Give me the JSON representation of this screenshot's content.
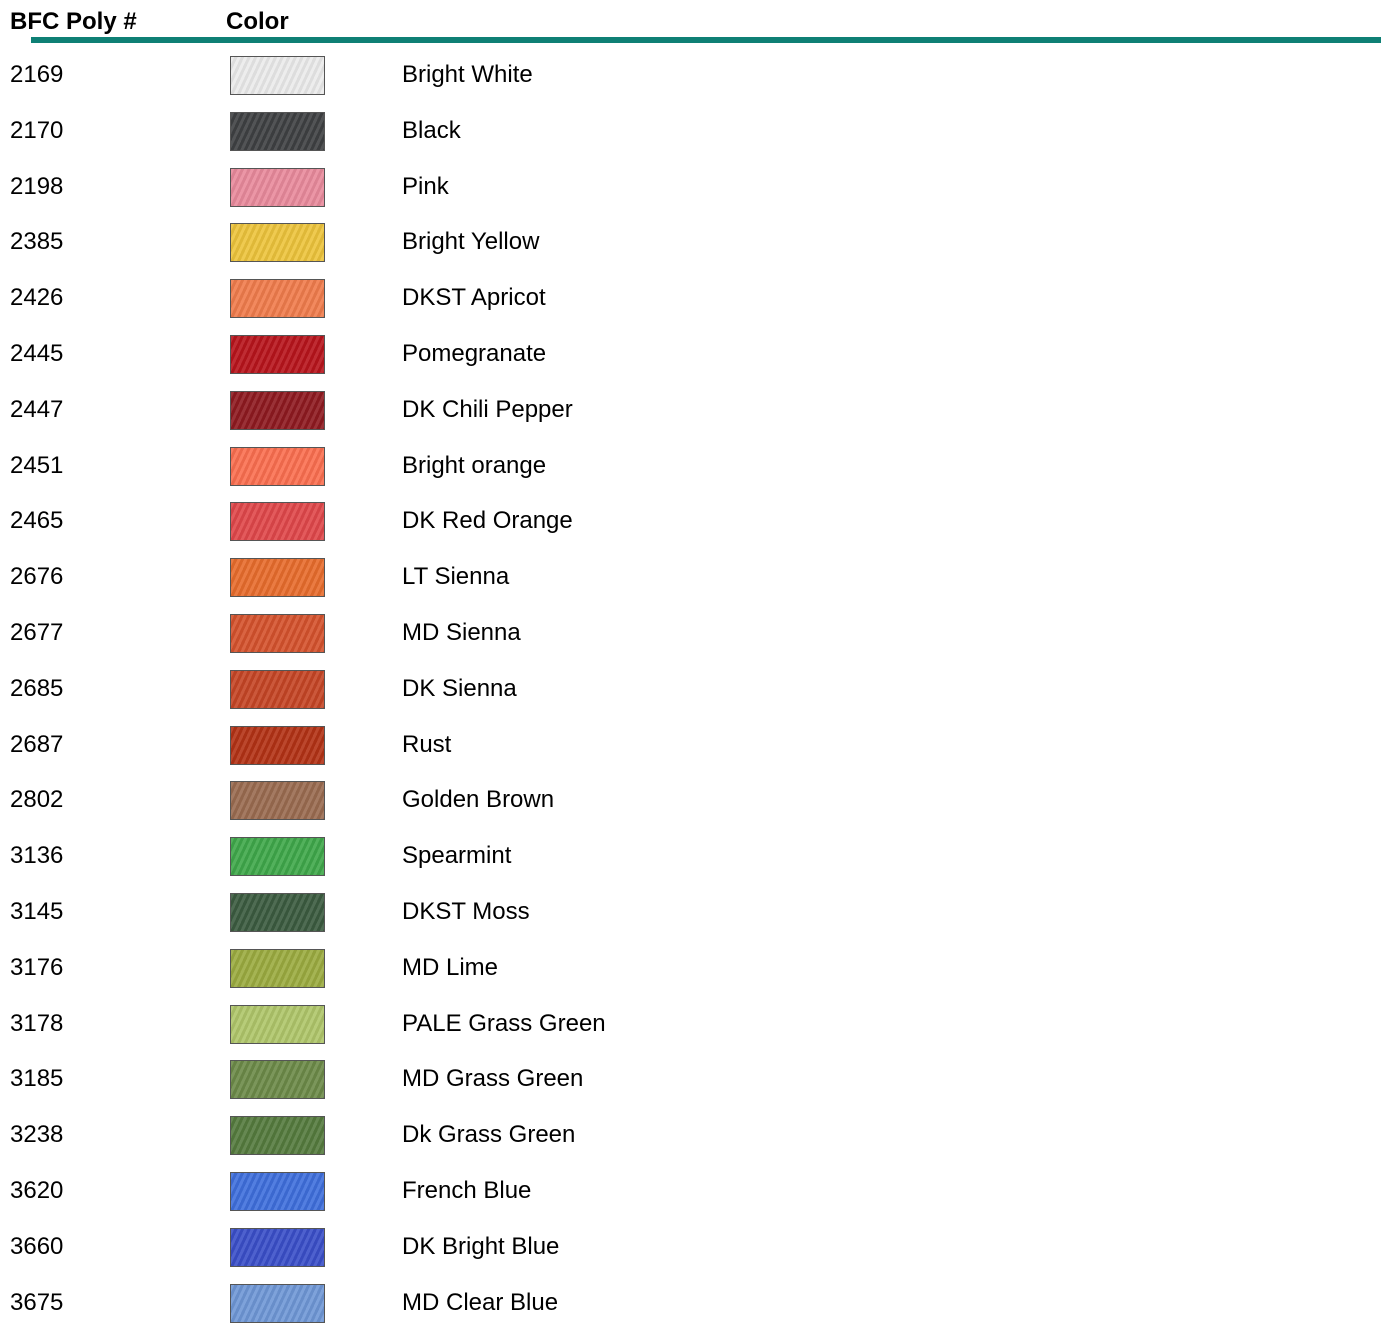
{
  "header": {
    "code_label": "BFC Poly #",
    "color_label": "Color"
  },
  "rows": [
    {
      "code": "2169",
      "name": "Bright White",
      "swatch": "#ebebeb"
    },
    {
      "code": "2170",
      "name": "Black",
      "swatch": "#3f4143"
    },
    {
      "code": "2198",
      "name": "Pink",
      "swatch": "#e98a9c"
    },
    {
      "code": "2385",
      "name": "Bright Yellow",
      "swatch": "#edc43c"
    },
    {
      "code": "2426",
      "name": "DKST Apricot",
      "swatch": "#f07c4c"
    },
    {
      "code": "2445",
      "name": "Pomegranate",
      "swatch": "#b8141c"
    },
    {
      "code": "2447",
      "name": "DK Chili Pepper",
      "swatch": "#8e1a20"
    },
    {
      "code": "2451",
      "name": "Bright orange",
      "swatch": "#fb6f50"
    },
    {
      "code": "2465",
      "name": "DK Red Orange",
      "swatch": "#e0474a"
    },
    {
      "code": "2676",
      "name": "LT Sienna",
      "swatch": "#e86c2c"
    },
    {
      "code": "2677",
      "name": "MD Sienna",
      "swatch": "#d5522d"
    },
    {
      "code": "2685",
      "name": "DK Sienna",
      "swatch": "#c54525"
    },
    {
      "code": "2687",
      "name": "Rust",
      "swatch": "#b33215"
    },
    {
      "code": "2802",
      "name": "Golden Brown",
      "swatch": "#9a6b50"
    },
    {
      "code": "3136",
      "name": "Spearmint",
      "swatch": "#3fa84a"
    },
    {
      "code": "3145",
      "name": "DKST Moss",
      "swatch": "#3b5b40"
    },
    {
      "code": "3176",
      "name": "MD Lime",
      "swatch": "#9bab40"
    },
    {
      "code": "3178",
      "name": "PALE Grass Green",
      "swatch": "#afc66a"
    },
    {
      "code": "3185",
      "name": "MD Grass Green",
      "swatch": "#6c8a48"
    },
    {
      "code": "3238",
      "name": "Dk Grass Green",
      "swatch": "#557b3e"
    },
    {
      "code": "3620",
      "name": "French Blue",
      "swatch": "#3f6fdc"
    },
    {
      "code": "3660",
      "name": "DK Bright Blue",
      "swatch": "#3a4fc9"
    },
    {
      "code": "3675",
      "name": "MD Clear Blue",
      "swatch": "#6f97d6"
    }
  ]
}
